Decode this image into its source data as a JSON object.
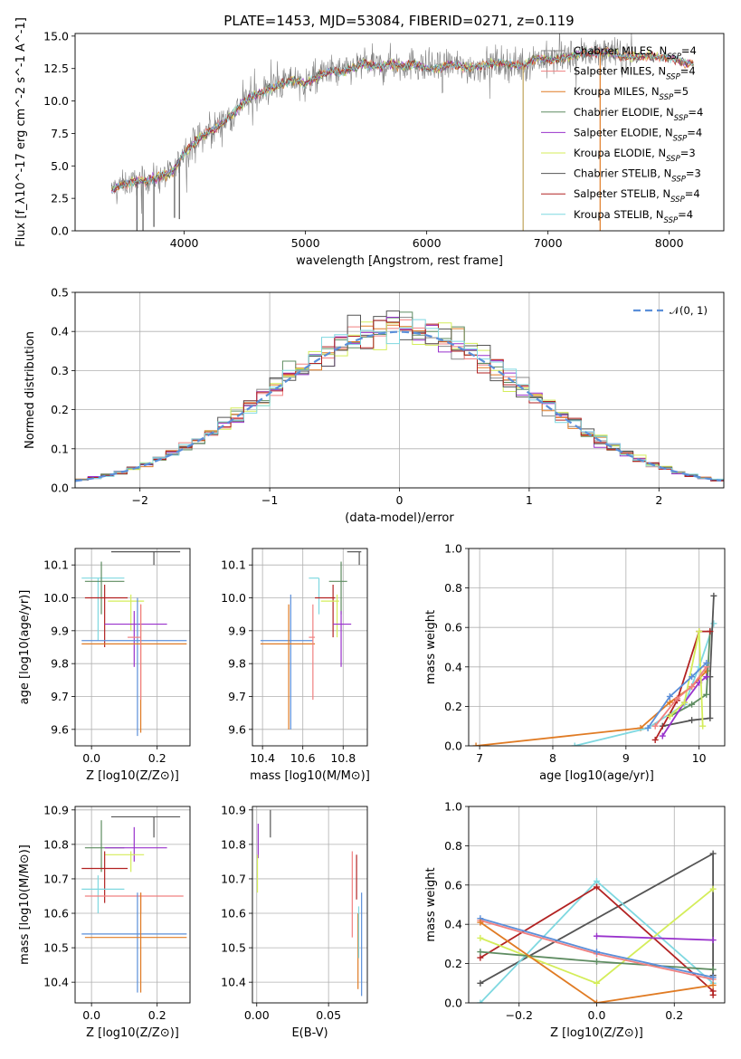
{
  "figure_title": "PLATE=1453, MJD=53084, FIBERID=0271, z=0.119",
  "colors": {
    "Chabrier MILES": "#888888",
    "Salpeter MILES": "#f08080",
    "Kroupa MILES": "#e07b24",
    "Chabrier ELODIE": "#5e8c61",
    "Salpeter ELODIE": "#9932cc",
    "Kroupa ELODIE": "#d4ed5a",
    "Chabrier STELIB": "#555555",
    "Salpeter STELIB": "#b22222",
    "Kroupa STELIB": "#7fd8e0",
    "blue": "#5b8fd9",
    "gaussian": "#5b8fd9"
  },
  "chart_data": [
    {
      "id": "spectrum",
      "type": "line",
      "title": "PLATE=1453, MJD=53084, FIBERID=0271, z=0.119",
      "xlabel": "wavelength [Angstrom, rest frame]",
      "ylabel": "Flux [f_λ10^-17 erg cm^-2 s^-1 A^-1]",
      "xlim": [
        3100,
        8450
      ],
      "ylim": [
        0,
        15.2
      ],
      "xticks": [
        4000,
        5000,
        6000,
        7000,
        8000
      ],
      "yticks": [
        0.0,
        2.5,
        5.0,
        7.5,
        10.0,
        12.5,
        15.0
      ],
      "legend_position": "right",
      "legend": [
        {
          "name": "Chabrier MILES",
          "n": "4"
        },
        {
          "name": "Salpeter MILES",
          "n": "4"
        },
        {
          "name": "Kroupa MILES",
          "n": "5"
        },
        {
          "name": "Chabrier ELODIE",
          "n": "4"
        },
        {
          "name": "Salpeter ELODIE",
          "n": "4"
        },
        {
          "name": "Kroupa ELODIE",
          "n": "3"
        },
        {
          "name": "Chabrier STELIB",
          "n": "3"
        },
        {
          "name": "Salpeter STELIB",
          "n": "4"
        },
        {
          "name": "Kroupa STELIB",
          "n": "4"
        }
      ],
      "continuum": {
        "x": [
          3400,
          3500,
          3600,
          3700,
          3800,
          3900,
          4000,
          4100,
          4200,
          4300,
          4400,
          4500,
          4600,
          4700,
          4800,
          4900,
          5000,
          5100,
          5200,
          5300,
          5400,
          5500,
          5600,
          5700,
          5800,
          5900,
          6000,
          6100,
          6200,
          6300,
          6400,
          6500,
          6600,
          6700,
          6800,
          6900,
          7000,
          7100,
          7200,
          7300,
          7400,
          7500,
          7600,
          7700,
          7800,
          7900,
          8000,
          8100,
          8200
        ],
        "y": [
          3.2,
          3.6,
          3.8,
          3.9,
          4.2,
          4.5,
          6.0,
          6.9,
          7.6,
          8.2,
          9.0,
          10.0,
          10.5,
          10.9,
          11.3,
          11.6,
          11.3,
          11.9,
          12.3,
          12.2,
          12.6,
          12.9,
          12.6,
          12.9,
          12.7,
          12.9,
          12.5,
          12.5,
          12.9,
          12.6,
          12.6,
          12.8,
          13.0,
          12.8,
          12.7,
          13.3,
          13.2,
          13.2,
          13.5,
          13.7,
          13.7,
          13.8,
          13.4,
          13.4,
          13.5,
          13.4,
          13.3,
          13.0,
          12.8
        ]
      },
      "data_noise": 0.9,
      "data_xlim": [
        3400,
        7700
      ],
      "dips": [
        {
          "x": 3610,
          "y": 0.0
        },
        {
          "x": 3660,
          "y": 0.0
        },
        {
          "x": 3750,
          "y": 0.3
        },
        {
          "x": 3920,
          "y": 1.0
        },
        {
          "x": 3960,
          "y": 0.9
        },
        {
          "x": 6795,
          "y": 0.0
        },
        {
          "x": 7430,
          "y": 0.0
        }
      ]
    },
    {
      "id": "residuals",
      "type": "step",
      "xlabel": "(data-model)/error",
      "ylabel": "Normed distribution",
      "xlim": [
        -2.5,
        2.5
      ],
      "ylim": [
        0,
        0.5
      ],
      "xticks": [
        -2,
        -1,
        0,
        1,
        2
      ],
      "yticks": [
        0.0,
        0.1,
        0.2,
        0.3,
        0.4,
        0.5
      ],
      "grid": true,
      "legend_position": "top-right",
      "legend": [
        "𝒩(0, 1)"
      ],
      "bin_edges_start": -2.5,
      "bin_width": 0.1,
      "gaussian": {
        "mean": 0,
        "sigma": 1
      }
    },
    {
      "id": "age-vs-Z",
      "type": "errorbar",
      "xlabel": "Z [log10(Z/Z⊙)]",
      "ylabel": "age  [log10(age/yr)]",
      "xlim": [
        -0.05,
        0.3
      ],
      "ylim": [
        9.55,
        10.15
      ],
      "xticks": [
        0.0,
        0.2
      ],
      "yticks": [
        9.6,
        9.7,
        9.8,
        9.9,
        10.0,
        10.1
      ],
      "grid": true,
      "points": [
        {
          "series": "Chabrier STELIB",
          "x": 0.19,
          "xlo": 0.06,
          "xhi": 0.27,
          "y": 10.14,
          "ylo": 10.1,
          "yhi": 10.14
        },
        {
          "series": "Kroupa STELIB",
          "x": 0.02,
          "xlo": -0.03,
          "xhi": 0.1,
          "y": 10.06,
          "ylo": 9.87,
          "yhi": 10.06
        },
        {
          "series": "Chabrier ELODIE",
          "x": 0.03,
          "xlo": -0.02,
          "xhi": 0.1,
          "y": 10.05,
          "ylo": 9.95,
          "yhi": 10.11
        },
        {
          "series": "Salpeter STELIB",
          "x": 0.04,
          "xlo": -0.02,
          "xhi": 0.11,
          "y": 10.0,
          "ylo": 9.85,
          "yhi": 10.04
        },
        {
          "series": "Kroupa ELODIE",
          "x": 0.12,
          "xlo": 0.05,
          "xhi": 0.16,
          "y": 9.99,
          "ylo": 9.9,
          "yhi": 10.01
        },
        {
          "series": "Salpeter ELODIE",
          "x": 0.13,
          "xlo": 0.04,
          "xhi": 0.23,
          "y": 9.92,
          "ylo": 9.79,
          "yhi": 9.96
        },
        {
          "series": "blue",
          "x": 0.14,
          "xlo": -0.03,
          "xhi": 0.29,
          "y": 9.87,
          "ylo": 9.58,
          "yhi": 10.0
        },
        {
          "series": "Kroupa MILES",
          "x": 0.15,
          "xlo": -0.03,
          "xhi": 0.29,
          "y": 9.86,
          "ylo": 9.59,
          "yhi": 9.98
        },
        {
          "series": "Salpeter MILES",
          "x": 0.15,
          "xlo": 0.11,
          "xhi": 0.15,
          "y": 9.88,
          "ylo": 9.69,
          "yhi": 9.98
        }
      ]
    },
    {
      "id": "age-vs-mass",
      "type": "errorbar",
      "xlabel": "mass [log10(M/M⊙)]",
      "ylabel": "",
      "xlim": [
        10.35,
        10.92
      ],
      "ylim": [
        9.55,
        10.15
      ],
      "xticks": [
        10.4,
        10.6,
        10.8
      ],
      "yticks": [
        9.6,
        9.7,
        9.8,
        9.9,
        10.0,
        10.1
      ],
      "grid": true,
      "points": [
        {
          "series": "Chabrier STELIB",
          "x": 10.88,
          "xlo": 10.82,
          "xhi": 10.89,
          "y": 10.14,
          "ylo": 10.1,
          "yhi": 10.14
        },
        {
          "series": "Kroupa STELIB",
          "x": 10.68,
          "xlo": 10.63,
          "xhi": 10.68,
          "y": 10.06,
          "ylo": 9.95,
          "yhi": 10.06
        },
        {
          "series": "Chabrier ELODIE",
          "x": 10.79,
          "xlo": 10.73,
          "xhi": 10.82,
          "y": 10.05,
          "ylo": 9.95,
          "yhi": 10.11
        },
        {
          "series": "Salpeter STELIB",
          "x": 10.75,
          "xlo": 10.66,
          "xhi": 10.76,
          "y": 10.0,
          "ylo": 9.88,
          "yhi": 10.04
        },
        {
          "series": "Kroupa ELODIE",
          "x": 10.77,
          "xlo": 10.69,
          "xhi": 10.78,
          "y": 9.99,
          "ylo": 9.88,
          "yhi": 10.01
        },
        {
          "series": "Salpeter ELODIE",
          "x": 10.79,
          "xlo": 10.75,
          "xhi": 10.84,
          "y": 9.92,
          "ylo": 9.79,
          "yhi": 9.96
        },
        {
          "series": "blue",
          "x": 10.54,
          "xlo": 10.39,
          "xhi": 10.65,
          "y": 9.87,
          "ylo": 9.6,
          "yhi": 10.01
        },
        {
          "series": "Kroupa MILES",
          "x": 10.53,
          "xlo": 10.39,
          "xhi": 10.66,
          "y": 9.86,
          "ylo": 9.6,
          "yhi": 9.98
        },
        {
          "series": "Salpeter MILES",
          "x": 10.65,
          "xlo": 10.63,
          "xhi": 10.66,
          "y": 9.88,
          "ylo": 9.69,
          "yhi": 9.98
        }
      ]
    },
    {
      "id": "mass-weight-vs-age",
      "type": "line",
      "xlabel": "age  [log10(age/yr)]",
      "ylabel": "mass weight",
      "xlim": [
        6.85,
        10.35
      ],
      "ylim": [
        0,
        1
      ],
      "xticks": [
        7,
        8,
        9,
        10
      ],
      "yticks": [
        0.0,
        0.2,
        0.4,
        0.6,
        0.8,
        1.0
      ],
      "grid": true,
      "series": [
        {
          "name": "Kroupa MILES",
          "x": [
            6.95,
            9.2,
            9.6,
            9.9,
            10.1
          ],
          "y": [
            0.0,
            0.09,
            0.22,
            0.3,
            0.38
          ]
        },
        {
          "name": "Kroupa STELIB",
          "x": [
            8.3,
            9.3,
            9.8,
            10.0,
            10.2
          ],
          "y": [
            0.0,
            0.09,
            0.21,
            0.4,
            0.62
          ]
        },
        {
          "name": "Chabrier STELIB",
          "x": [
            9.5,
            9.9,
            10.15,
            10.15,
            10.2
          ],
          "y": [
            0.1,
            0.13,
            0.14,
            0.35,
            0.76
          ]
        },
        {
          "name": "Chabrier ELODIE",
          "x": [
            9.6,
            9.9,
            10.1,
            10.15
          ],
          "y": [
            0.15,
            0.21,
            0.26,
            0.58
          ]
        },
        {
          "name": "Salpeter STELIB",
          "x": [
            9.4,
            9.7,
            10.0,
            10.15
          ],
          "y": [
            0.03,
            0.23,
            0.58,
            0.58
          ]
        },
        {
          "name": "Salpeter ELODIE",
          "x": [
            9.5,
            9.8,
            10.0,
            10.1
          ],
          "y": [
            0.05,
            0.22,
            0.32,
            0.35
          ]
        },
        {
          "name": "Kroupa ELODIE",
          "x": [
            9.6,
            9.8,
            10.0,
            10.05
          ],
          "y": [
            0.15,
            0.22,
            0.58,
            0.1
          ]
        },
        {
          "name": "Salpeter MILES",
          "x": [
            9.4,
            9.7,
            9.9,
            10.1
          ],
          "y": [
            0.1,
            0.24,
            0.3,
            0.4
          ]
        },
        {
          "name": "blue",
          "x": [
            9.3,
            9.6,
            9.9,
            10.1
          ],
          "y": [
            0.09,
            0.25,
            0.35,
            0.42
          ]
        }
      ]
    },
    {
      "id": "mass-vs-Z",
      "type": "errorbar",
      "xlabel": "Z [log10(Z/Z⊙)]",
      "ylabel": "mass [log10(M/M⊙)]",
      "xlim": [
        -0.05,
        0.3
      ],
      "ylim": [
        10.34,
        10.91
      ],
      "xticks": [
        0.0,
        0.2
      ],
      "yticks": [
        10.4,
        10.5,
        10.6,
        10.7,
        10.8,
        10.9
      ],
      "grid": true,
      "points": [
        {
          "series": "Chabrier STELIB",
          "x": 0.19,
          "xlo": 0.06,
          "xhi": 0.27,
          "y": 10.88,
          "ylo": 10.82,
          "yhi": 10.88
        },
        {
          "series": "Chabrier ELODIE",
          "x": 0.03,
          "xlo": -0.02,
          "xhi": 0.1,
          "y": 10.79,
          "ylo": 10.72,
          "yhi": 10.87
        },
        {
          "series": "Salpeter ELODIE",
          "x": 0.13,
          "xlo": 0.04,
          "xhi": 0.23,
          "y": 10.79,
          "ylo": 10.75,
          "yhi": 10.85
        },
        {
          "series": "Kroupa ELODIE",
          "x": 0.12,
          "xlo": 0.04,
          "xhi": 0.16,
          "y": 10.77,
          "ylo": 10.72,
          "yhi": 10.78
        },
        {
          "series": "Salpeter STELIB",
          "x": 0.04,
          "xlo": -0.03,
          "xhi": 0.11,
          "y": 10.73,
          "ylo": 10.63,
          "yhi": 10.78
        },
        {
          "series": "Kroupa STELIB",
          "x": 0.02,
          "xlo": -0.03,
          "xhi": 0.1,
          "y": 10.67,
          "ylo": 10.6,
          "yhi": 10.71
        },
        {
          "series": "Salpeter MILES",
          "x": 0.15,
          "xlo": -0.02,
          "xhi": 0.28,
          "y": 10.65,
          "ylo": 10.6,
          "yhi": 10.66
        },
        {
          "series": "blue",
          "x": 0.14,
          "xlo": -0.03,
          "xhi": 0.29,
          "y": 10.54,
          "ylo": 10.37,
          "yhi": 10.66
        },
        {
          "series": "Kroupa MILES",
          "x": 0.15,
          "xlo": -0.02,
          "xhi": 0.29,
          "y": 10.53,
          "ylo": 10.37,
          "yhi": 10.66
        }
      ]
    },
    {
      "id": "mass-vs-ebv",
      "type": "errorbar",
      "xlabel": "E(B-V)",
      "ylabel": "",
      "xlim": [
        -0.003,
        0.077
      ],
      "ylim": [
        10.34,
        10.91
      ],
      "xticks": [
        0.0,
        0.05
      ],
      "yticks": [
        10.4,
        10.5,
        10.6,
        10.7,
        10.8,
        10.9
      ],
      "grid": true,
      "points": [
        {
          "series": "Chabrier STELIB",
          "x": 0.0095,
          "y": 10.88,
          "ylo": 10.82,
          "yhi": 10.9
        },
        {
          "series": "Salpeter ELODIE",
          "x": 0.001,
          "y": 10.83,
          "ylo": 10.76,
          "yhi": 10.86
        },
        {
          "series": "Kroupa ELODIE",
          "x": 0.0005,
          "y": 10.72,
          "ylo": 10.66,
          "yhi": 10.77
        },
        {
          "series": "Salpeter MILES",
          "x": 0.0665,
          "y": 10.68,
          "ylo": 10.53,
          "yhi": 10.78
        },
        {
          "series": "Salpeter STELIB",
          "x": 0.0695,
          "y": 10.72,
          "ylo": 10.64,
          "yhi": 10.77
        },
        {
          "series": "Kroupa MILES",
          "x": 0.0705,
          "y": 10.5,
          "ylo": 10.38,
          "yhi": 10.6
        },
        {
          "series": "Kroupa STELIB",
          "x": 0.071,
          "y": 10.55,
          "ylo": 10.47,
          "yhi": 10.62
        },
        {
          "series": "blue",
          "x": 0.073,
          "y": 10.5,
          "ylo": 10.36,
          "yhi": 10.66
        }
      ]
    },
    {
      "id": "mass-weight-vs-Z",
      "type": "line",
      "xlabel": "Z [log10(Z/Z⊙)]",
      "ylabel": "mass weight",
      "xlim": [
        -0.33,
        0.33
      ],
      "ylim": [
        0,
        1
      ],
      "xticks": [
        -0.2,
        0.0,
        0.2
      ],
      "yticks": [
        0.0,
        0.2,
        0.4,
        0.6,
        0.8,
        1.0
      ],
      "grid": true,
      "series": [
        {
          "name": "Chabrier STELIB",
          "x": [
            -0.3,
            0.3,
            0.3
          ],
          "y": [
            0.1,
            0.76,
            0.14
          ]
        },
        {
          "name": "Kroupa STELIB",
          "x": [
            -0.3,
            0.0,
            0.3
          ],
          "y": [
            0.0,
            0.62,
            0.1
          ]
        },
        {
          "name": "Salpeter STELIB",
          "x": [
            -0.3,
            0.0,
            0.3,
            0.3
          ],
          "y": [
            0.23,
            0.59,
            0.06,
            0.04
          ]
        },
        {
          "name": "Kroupa ELODIE",
          "x": [
            -0.3,
            0.0,
            0.3
          ],
          "y": [
            0.33,
            0.1,
            0.58
          ]
        },
        {
          "name": "Chabrier ELODIE",
          "x": [
            -0.3,
            0.0,
            0.3
          ],
          "y": [
            0.26,
            0.21,
            0.17
          ]
        },
        {
          "name": "Salpeter ELODIE",
          "x": [
            0.0,
            0.3
          ],
          "y": [
            0.34,
            0.32
          ]
        },
        {
          "name": "Salpeter MILES",
          "x": [
            -0.3,
            0.0,
            0.3
          ],
          "y": [
            0.42,
            0.25,
            0.12
          ]
        },
        {
          "name": "blue",
          "x": [
            -0.3,
            0.0,
            0.3
          ],
          "y": [
            0.43,
            0.26,
            0.13
          ]
        },
        {
          "name": "Kroupa MILES",
          "x": [
            -0.3,
            0.0,
            0.3
          ],
          "y": [
            0.41,
            0.0,
            0.09
          ]
        }
      ]
    }
  ]
}
